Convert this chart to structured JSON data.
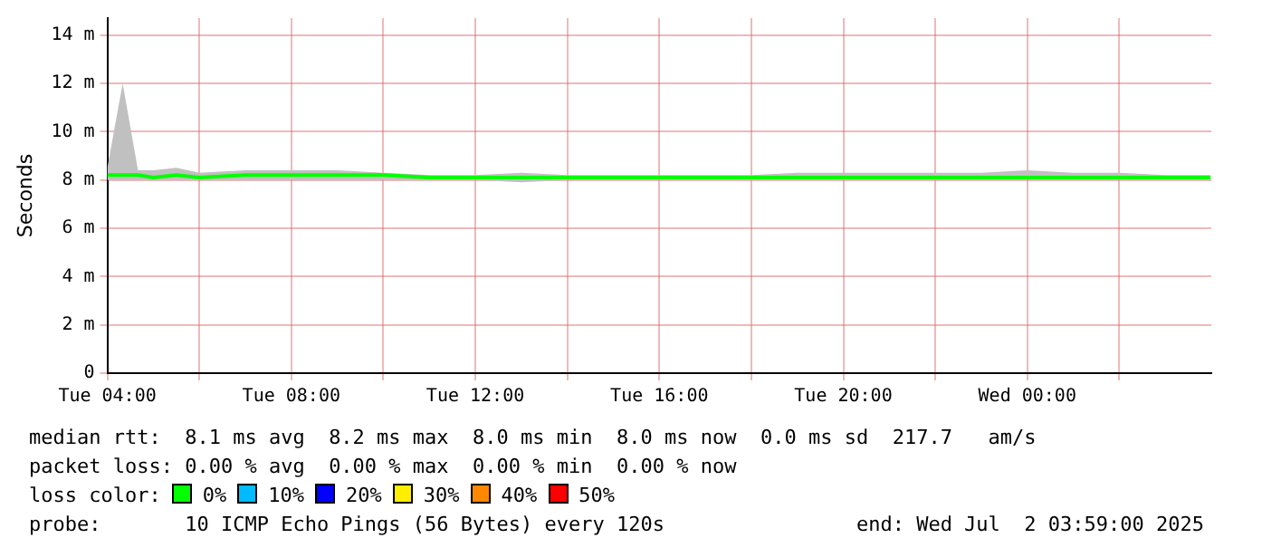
{
  "chart_data": {
    "type": "line",
    "ylabel": "Seconds",
    "legend_title": "loss color:",
    "legend": "bottom",
    "grid": true,
    "marker": "none",
    "x": [
      "2025-07-01T04:00",
      "2025-07-01T04:20",
      "2025-07-01T04:40",
      "2025-07-01T05:00",
      "2025-07-01T05:30",
      "2025-07-01T06:00",
      "2025-07-01T07:00",
      "2025-07-01T08:00",
      "2025-07-01T09:00",
      "2025-07-01T10:00",
      "2025-07-01T11:00",
      "2025-07-01T12:00",
      "2025-07-01T13:00",
      "2025-07-01T14:00",
      "2025-07-01T15:00",
      "2025-07-01T16:00",
      "2025-07-01T17:00",
      "2025-07-01T18:00",
      "2025-07-01T19:00",
      "2025-07-01T20:00",
      "2025-07-01T21:00",
      "2025-07-01T22:00",
      "2025-07-01T23:00",
      "2025-07-02T00:00",
      "2025-07-02T01:00",
      "2025-07-02T02:00",
      "2025-07-02T03:00",
      "2025-07-02T03:59"
    ],
    "xlim": [
      "2025-07-01T04:00",
      "2025-07-02T04:00"
    ],
    "xticks": [
      {
        "value": "2025-07-01T04:00",
        "label": "Tue 04:00"
      },
      {
        "value": "2025-07-01T06:00",
        "label": null
      },
      {
        "value": "2025-07-01T08:00",
        "label": "Tue 08:00"
      },
      {
        "value": "2025-07-01T10:00",
        "label": null
      },
      {
        "value": "2025-07-01T12:00",
        "label": "Tue 12:00"
      },
      {
        "value": "2025-07-01T14:00",
        "label": null
      },
      {
        "value": "2025-07-01T16:00",
        "label": "Tue 16:00"
      },
      {
        "value": "2025-07-01T18:00",
        "label": null
      },
      {
        "value": "2025-07-01T20:00",
        "label": "Tue 20:00"
      },
      {
        "value": "2025-07-01T22:00",
        "label": null
      },
      {
        "value": "2025-07-02T00:00",
        "label": "Wed 00:00"
      },
      {
        "value": "2025-07-02T02:00",
        "label": null
      }
    ],
    "ylim": [
      0,
      14.7
    ],
    "yticks": [
      0,
      {
        "value": 2,
        "label": "2 m"
      },
      {
        "value": 4,
        "label": "4 m"
      },
      {
        "value": 6,
        "label": "6 m"
      },
      {
        "value": 8,
        "label": "8 m"
      },
      {
        "value": 10,
        "label": "10 m"
      },
      {
        "value": 12,
        "label": "12 m"
      },
      {
        "value": 14,
        "label": "14 m"
      }
    ],
    "series": [
      {
        "name": "0%",
        "color": "#00ff00",
        "values": [
          8.2,
          8.2,
          8.2,
          8.1,
          8.2,
          8.1,
          8.2,
          8.2,
          8.2,
          8.2,
          8.1,
          8.1,
          8.1,
          8.1,
          8.1,
          8.1,
          8.1,
          8.1,
          8.1,
          8.1,
          8.1,
          8.1,
          8.1,
          8.1,
          8.1,
          8.1,
          8.1,
          8.1
        ],
        "lower": [
          8.0,
          8.0,
          8.0,
          8.0,
          8.0,
          8.0,
          8.0,
          8.0,
          8.0,
          8.0,
          8.0,
          8.0,
          7.9,
          8.0,
          8.0,
          8.0,
          8.0,
          8.0,
          8.0,
          8.0,
          8.0,
          8.0,
          8.0,
          8.0,
          8.0,
          8.0,
          8.0,
          8.0
        ],
        "upper": [
          8.5,
          12.0,
          8.4,
          8.4,
          8.5,
          8.3,
          8.4,
          8.4,
          8.4,
          8.3,
          8.2,
          8.2,
          8.3,
          8.2,
          8.2,
          8.2,
          8.2,
          8.2,
          8.3,
          8.3,
          8.3,
          8.3,
          8.3,
          8.4,
          8.3,
          8.3,
          8.2,
          8.2
        ]
      },
      {
        "name": "10%",
        "color": "#00bbff",
        "values": [
          null,
          null,
          null,
          null,
          null,
          null,
          null,
          null,
          null,
          null,
          null,
          null,
          null,
          null,
          null,
          null,
          null,
          null,
          null,
          null,
          null,
          null,
          null,
          null,
          null,
          null,
          null,
          null
        ]
      },
      {
        "name": "20%",
        "color": "#0000ff",
        "values": [
          null,
          null,
          null,
          null,
          null,
          null,
          null,
          null,
          null,
          null,
          null,
          null,
          null,
          null,
          null,
          null,
          null,
          null,
          null,
          null,
          null,
          null,
          null,
          null,
          null,
          null,
          null,
          null
        ]
      },
      {
        "name": "30%",
        "color": "#ffee00",
        "values": [
          null,
          null,
          null,
          null,
          null,
          null,
          null,
          null,
          null,
          null,
          null,
          null,
          null,
          null,
          null,
          null,
          null,
          null,
          null,
          null,
          null,
          null,
          null,
          null,
          null,
          null,
          null,
          null
        ]
      },
      {
        "name": "40%",
        "color": "#ff8800",
        "values": [
          null,
          null,
          null,
          null,
          null,
          null,
          null,
          null,
          null,
          null,
          null,
          null,
          null,
          null,
          null,
          null,
          null,
          null,
          null,
          null,
          null,
          null,
          null,
          null,
          null,
          null,
          null,
          null
        ]
      },
      {
        "name": "50%",
        "color": "#ff0000",
        "values": [
          null,
          null,
          null,
          null,
          null,
          null,
          null,
          null,
          null,
          null,
          null,
          null,
          null,
          null,
          null,
          null,
          null,
          null,
          null,
          null,
          null,
          null,
          null,
          null,
          null,
          null,
          null,
          null
        ]
      }
    ],
    "annotations": [
      "median rtt:  8.1 ms avg  8.2 ms max  8.0 ms min  8.0 ms now  0.0 ms sd  217.7   am/s",
      "packet loss: 0.00 % avg  0.00 % max  0.00 % min  0.00 % now",
      "probe:       10 ICMP Echo Pings (56 Bytes) every 120s                end: Wed Jul  2 03:59:00 2025"
    ]
  }
}
